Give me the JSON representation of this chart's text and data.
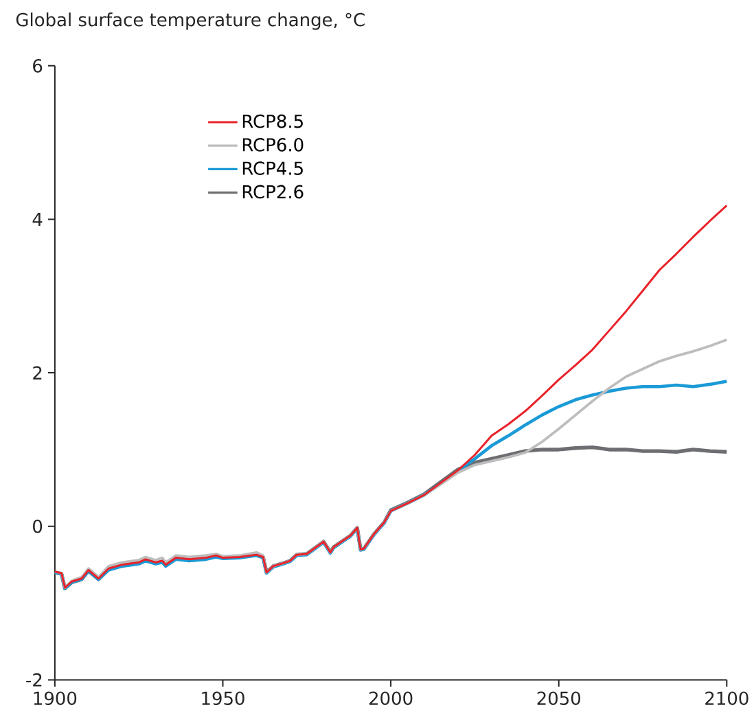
{
  "chart_data": {
    "type": "line",
    "title": "Global surface temperature change, °C",
    "xlim": [
      1900,
      2100
    ],
    "xticks": [
      1900,
      1950,
      2000,
      2050,
      2100
    ],
    "ylim": [
      -2,
      6
    ],
    "yticks": [
      -2,
      0,
      2,
      4,
      6
    ],
    "legend": "top left",
    "grid": false,
    "marker": "none",
    "line_style": "solid",
    "series": [
      {
        "name": "RCP8.5",
        "color": "#e8232a",
        "x": [
          1900,
          1902,
          1903,
          1905,
          1908,
          1910,
          1913,
          1916,
          1920,
          1925,
          1927,
          1930,
          1932,
          1933,
          1936,
          1940,
          1945,
          1948,
          1950,
          1955,
          1960,
          1962,
          1963,
          1965,
          1968,
          1970,
          1972,
          1975,
          1980,
          1982,
          1983,
          1988,
          1990,
          1991,
          1992,
          1995,
          1998,
          2000,
          2005,
          2010,
          2015,
          2020,
          2025,
          2030,
          2035,
          2040,
          2045,
          2050,
          2055,
          2060,
          2065,
          2070,
          2075,
          2080,
          2085,
          2090,
          2095,
          2100
        ],
        "values": [
          -0.59,
          -0.61,
          -0.8,
          -0.72,
          -0.68,
          -0.57,
          -0.68,
          -0.55,
          -0.5,
          -0.47,
          -0.43,
          -0.47,
          -0.45,
          -0.5,
          -0.41,
          -0.43,
          -0.41,
          -0.38,
          -0.41,
          -0.4,
          -0.37,
          -0.4,
          -0.6,
          -0.52,
          -0.48,
          -0.45,
          -0.37,
          -0.36,
          -0.2,
          -0.34,
          -0.27,
          -0.12,
          -0.02,
          -0.3,
          -0.29,
          -0.1,
          0.05,
          0.2,
          0.3,
          0.41,
          0.57,
          0.73,
          0.93,
          1.18,
          1.33,
          1.5,
          1.7,
          1.91,
          2.1,
          2.3,
          2.55,
          2.8,
          3.07,
          3.34,
          3.55,
          3.77,
          3.98,
          4.18
        ]
      },
      {
        "name": "RCP6.0",
        "color": "#bdbdbd",
        "x": [
          1900,
          1902,
          1903,
          1905,
          1908,
          1910,
          1913,
          1916,
          1920,
          1925,
          1927,
          1930,
          1932,
          1933,
          1936,
          1940,
          1945,
          1948,
          1950,
          1955,
          1960,
          1962,
          1963,
          1965,
          1968,
          1970,
          1972,
          1975,
          1980,
          1982,
          1983,
          1988,
          1990,
          1991,
          1992,
          1995,
          1998,
          2000,
          2005,
          2010,
          2015,
          2020,
          2025,
          2030,
          2035,
          2040,
          2045,
          2050,
          2055,
          2060,
          2065,
          2070,
          2075,
          2080,
          2085,
          2090,
          2095,
          2100
        ],
        "values": [
          -0.59,
          -0.61,
          -0.8,
          -0.71,
          -0.66,
          -0.55,
          -0.66,
          -0.52,
          -0.47,
          -0.44,
          -0.4,
          -0.44,
          -0.41,
          -0.47,
          -0.38,
          -0.4,
          -0.38,
          -0.36,
          -0.39,
          -0.38,
          -0.34,
          -0.38,
          -0.6,
          -0.52,
          -0.48,
          -0.45,
          -0.37,
          -0.36,
          -0.2,
          -0.34,
          -0.27,
          -0.12,
          -0.02,
          -0.3,
          -0.29,
          -0.1,
          0.05,
          0.2,
          0.3,
          0.41,
          0.55,
          0.7,
          0.8,
          0.85,
          0.9,
          0.96,
          1.1,
          1.27,
          1.45,
          1.63,
          1.8,
          1.95,
          2.05,
          2.15,
          2.22,
          2.28,
          2.35,
          2.43
        ]
      },
      {
        "name": "RCP4.5",
        "color": "#1a9ad6",
        "x": [
          1900,
          1902,
          1903,
          1905,
          1908,
          1910,
          1913,
          1916,
          1920,
          1925,
          1927,
          1930,
          1932,
          1933,
          1936,
          1940,
          1945,
          1948,
          1950,
          1955,
          1960,
          1962,
          1963,
          1965,
          1968,
          1970,
          1972,
          1975,
          1980,
          1982,
          1983,
          1988,
          1990,
          1991,
          1992,
          1995,
          1998,
          2000,
          2005,
          2010,
          2015,
          2020,
          2025,
          2030,
          2035,
          2040,
          2045,
          2050,
          2055,
          2060,
          2065,
          2070,
          2075,
          2080,
          2085,
          2090,
          2095,
          2100
        ],
        "values": [
          -0.6,
          -0.62,
          -0.81,
          -0.73,
          -0.69,
          -0.58,
          -0.69,
          -0.57,
          -0.52,
          -0.49,
          -0.45,
          -0.49,
          -0.47,
          -0.52,
          -0.43,
          -0.45,
          -0.43,
          -0.4,
          -0.42,
          -0.41,
          -0.38,
          -0.41,
          -0.61,
          -0.53,
          -0.49,
          -0.46,
          -0.38,
          -0.37,
          -0.21,
          -0.35,
          -0.28,
          -0.13,
          -0.03,
          -0.31,
          -0.3,
          -0.11,
          0.04,
          0.2,
          0.3,
          0.41,
          0.56,
          0.72,
          0.88,
          1.05,
          1.18,
          1.32,
          1.45,
          1.56,
          1.65,
          1.71,
          1.76,
          1.8,
          1.82,
          1.82,
          1.84,
          1.82,
          1.85,
          1.89
        ]
      },
      {
        "name": "RCP2.6",
        "color": "#6d6e71",
        "x": [
          1900,
          1902,
          1903,
          1905,
          1908,
          1910,
          1913,
          1916,
          1920,
          1925,
          1927,
          1930,
          1932,
          1933,
          1936,
          1940,
          1945,
          1948,
          1950,
          1955,
          1960,
          1962,
          1963,
          1965,
          1968,
          1970,
          1972,
          1975,
          1980,
          1982,
          1983,
          1988,
          1990,
          1991,
          1992,
          1995,
          1998,
          2000,
          2005,
          2010,
          2015,
          2020,
          2025,
          2030,
          2035,
          2040,
          2045,
          2050,
          2055,
          2060,
          2065,
          2070,
          2075,
          2080,
          2085,
          2090,
          2095,
          2100
        ],
        "values": [
          -0.6,
          -0.62,
          -0.81,
          -0.73,
          -0.69,
          -0.58,
          -0.69,
          -0.56,
          -0.51,
          -0.48,
          -0.44,
          -0.48,
          -0.46,
          -0.51,
          -0.42,
          -0.44,
          -0.42,
          -0.39,
          -0.41,
          -0.4,
          -0.37,
          -0.4,
          -0.6,
          -0.52,
          -0.48,
          -0.45,
          -0.37,
          -0.36,
          -0.2,
          -0.34,
          -0.27,
          -0.12,
          -0.02,
          -0.3,
          -0.29,
          -0.1,
          0.05,
          0.21,
          0.31,
          0.42,
          0.58,
          0.74,
          0.83,
          0.88,
          0.93,
          0.98,
          1.0,
          1.0,
          1.02,
          1.03,
          1.0,
          1.0,
          0.98,
          0.98,
          0.97,
          1.0,
          0.98,
          0.97
        ]
      }
    ]
  }
}
